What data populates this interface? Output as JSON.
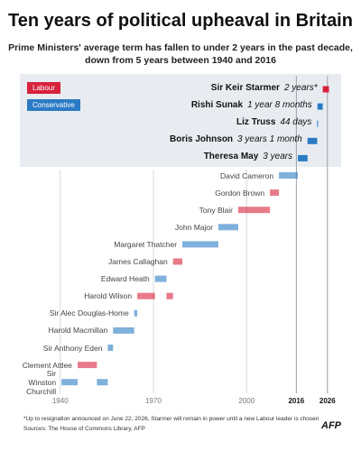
{
  "chart_data": {
    "type": "timeline",
    "title": "Ten years of political upheaval in Britain",
    "subtitle": [
      "Prime Ministers' average term has fallen to under 2 years in the past decade,",
      "down from 5 years between 1940 and 2016"
    ],
    "legend": [
      {
        "name": "Labour",
        "color": "#d8213b"
      },
      {
        "name": "Conservative",
        "color": "#2b7bc4"
      }
    ],
    "rows": [
      {
        "name": "Sir Keir Starmer",
        "tenure": "2 years*",
        "party": "Labour",
        "terms": [
          {
            "start": 2024.5,
            "end": 2026.5
          }
        ]
      },
      {
        "name": "Rishi Sunak",
        "tenure": "1 year 8 months",
        "party": "Conservative",
        "terms": [
          {
            "start": 2022.8,
            "end": 2024.5
          }
        ]
      },
      {
        "name": "Liz Truss",
        "tenure": "44 days",
        "party": "Conservative",
        "terms": [
          {
            "start": 2022.7,
            "end": 2022.8
          }
        ]
      },
      {
        "name": "Boris Johnson",
        "tenure": "3 years 1 month",
        "party": "Conservative",
        "terms": [
          {
            "start": 2019.6,
            "end": 2022.7
          }
        ]
      },
      {
        "name": "Theresa May",
        "tenure": "3 years",
        "party": "Conservative",
        "terms": [
          {
            "start": 2016.5,
            "end": 2019.6
          }
        ]
      },
      {
        "name": "David Cameron",
        "party": "Conservative",
        "terms": [
          {
            "start": 2010.4,
            "end": 2016.5
          }
        ]
      },
      {
        "name": "Gordon Brown",
        "party": "Labour",
        "terms": [
          {
            "start": 2007.5,
            "end": 2010.4
          }
        ]
      },
      {
        "name": "Tony Blair",
        "party": "Labour",
        "terms": [
          {
            "start": 1997.3,
            "end": 2007.5
          }
        ]
      },
      {
        "name": "John Major",
        "party": "Conservative",
        "terms": [
          {
            "start": 1990.9,
            "end": 1997.3
          }
        ]
      },
      {
        "name": "Margaret Thatcher",
        "party": "Conservative",
        "terms": [
          {
            "start": 1979.3,
            "end": 1990.9
          }
        ]
      },
      {
        "name": "James Callaghan",
        "party": "Labour",
        "terms": [
          {
            "start": 1976.3,
            "end": 1979.3
          }
        ]
      },
      {
        "name": "Edward Heath",
        "party": "Conservative",
        "terms": [
          {
            "start": 1970.5,
            "end": 1974.2
          }
        ]
      },
      {
        "name": "Harold Wilson",
        "party": "Labour",
        "terms": [
          {
            "start": 1964.8,
            "end": 1970.5
          },
          {
            "start": 1974.2,
            "end": 1976.3
          }
        ]
      },
      {
        "name": "Sir Alec Douglas-Home",
        "party": "Conservative",
        "terms": [
          {
            "start": 1963.8,
            "end": 1964.8
          }
        ]
      },
      {
        "name": "Harold Macmillan",
        "party": "Conservative",
        "terms": [
          {
            "start": 1957.0,
            "end": 1963.8
          }
        ]
      },
      {
        "name": "Sir Anthony Eden",
        "party": "Conservative",
        "terms": [
          {
            "start": 1955.3,
            "end": 1957.0
          }
        ]
      },
      {
        "name": "Clement Attlee",
        "party": "Labour",
        "terms": [
          {
            "start": 1945.6,
            "end": 1951.8
          }
        ]
      },
      {
        "name": "Sir Winston Churchill",
        "party": "Conservative",
        "terms": [
          {
            "start": 1940.4,
            "end": 1945.6
          },
          {
            "start": 1951.8,
            "end": 1955.3
          }
        ]
      }
    ],
    "xlim": [
      1927,
      2031
    ],
    "xticks": [
      1940,
      1970,
      2000,
      2016,
      2026
    ],
    "grid": true,
    "footnote": "*Up to resignation announced on June 22, 2026, Starmer will remain in power until a new Labour leader is chosen",
    "source": "Sources: The House of Commons Library, AFP",
    "logo": "AFP"
  }
}
